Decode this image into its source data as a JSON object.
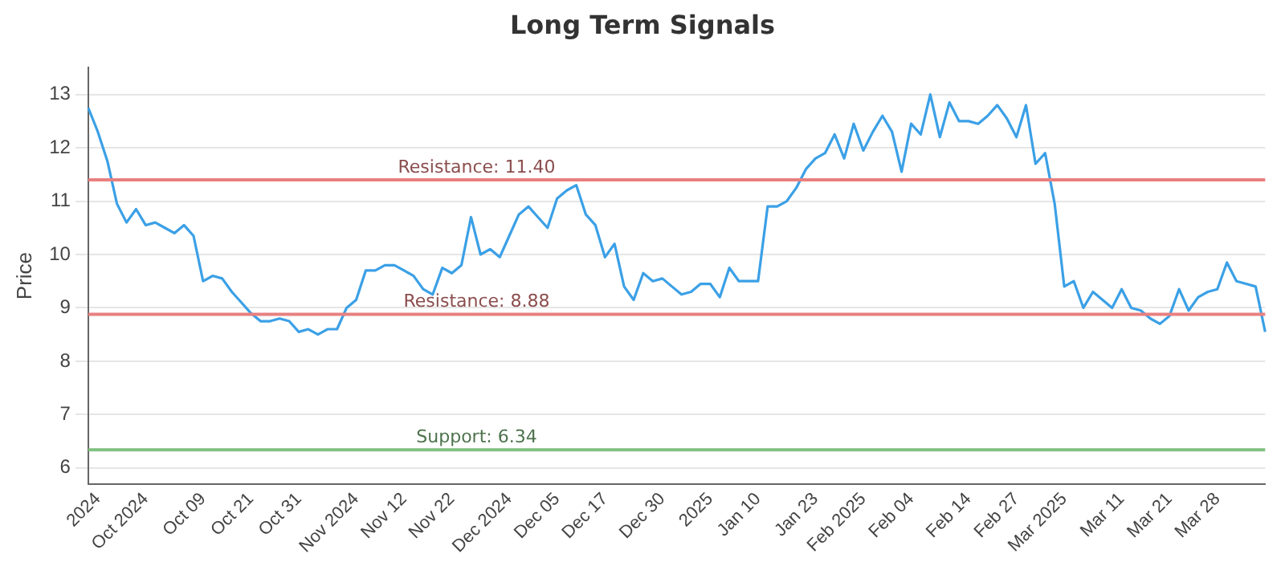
{
  "chart_data": {
    "type": "line",
    "title": "Long Term Signals",
    "ylabel": "Price",
    "categories": [
      null,
      "2024",
      null,
      null,
      null,
      null,
      "Oct 2024",
      null,
      null,
      null,
      null,
      null,
      "Oct 09",
      null,
      null,
      null,
      null,
      "Oct 21",
      null,
      null,
      null,
      null,
      "Oct 31",
      null,
      null,
      null,
      null,
      null,
      "Nov 2024",
      null,
      null,
      null,
      null,
      "Nov 12",
      null,
      null,
      null,
      null,
      "Nov 22",
      null,
      null,
      null,
      null,
      null,
      "Dec 2024",
      null,
      null,
      null,
      null,
      "Dec 05",
      null,
      null,
      null,
      null,
      "Dec 17",
      null,
      null,
      null,
      null,
      null,
      "Dec 30",
      null,
      null,
      null,
      null,
      "2025",
      null,
      null,
      null,
      null,
      "Jan 10",
      null,
      null,
      null,
      null,
      null,
      "Jan 23",
      null,
      null,
      null,
      null,
      "Feb 2025",
      null,
      null,
      null,
      null,
      "Feb 04",
      null,
      null,
      null,
      null,
      null,
      "Feb 14",
      null,
      null,
      null,
      null,
      "Feb 27",
      null,
      null,
      null,
      null,
      "Mar 2025",
      null,
      null,
      null,
      null,
      null,
      "Mar 11",
      null,
      null,
      null,
      null,
      "Mar 21",
      null,
      null,
      null,
      null,
      "Mar 28",
      null,
      null,
      null,
      null,
      null
    ],
    "series": [
      {
        "color": "#3ba0e6",
        "values": [
          12.75,
          12.3,
          11.75,
          10.95,
          10.6,
          10.85,
          10.55,
          10.6,
          10.5,
          10.4,
          10.55,
          10.35,
          9.5,
          9.6,
          9.55,
          9.3,
          9.1,
          8.9,
          8.75,
          8.75,
          8.8,
          8.75,
          8.55,
          8.6,
          8.5,
          8.6,
          8.6,
          9.0,
          9.15,
          9.7,
          9.7,
          9.8,
          9.8,
          9.7,
          9.6,
          9.35,
          9.25,
          9.75,
          9.65,
          9.8,
          10.7,
          10.0,
          10.1,
          9.95,
          10.35,
          10.75,
          10.9,
          10.7,
          10.5,
          11.05,
          11.2,
          11.3,
          10.75,
          10.55,
          9.95,
          10.2,
          9.4,
          9.15,
          9.65,
          9.5,
          9.55,
          9.4,
          9.25,
          9.3,
          9.45,
          9.45,
          9.2,
          9.75,
          9.5,
          9.5,
          9.5,
          10.9,
          10.9,
          11.0,
          11.25,
          11.6,
          11.8,
          11.9,
          12.25,
          11.8,
          12.45,
          11.95,
          12.3,
          12.6,
          12.3,
          11.55,
          12.45,
          12.25,
          13.0,
          12.2,
          12.85,
          12.5,
          12.5,
          12.45,
          12.6,
          12.8,
          12.55,
          12.2,
          12.8,
          11.7,
          11.9,
          10.95,
          9.4,
          9.5,
          9.0,
          9.3,
          9.15,
          9.0,
          9.35,
          9.0,
          8.95,
          8.8,
          8.7,
          8.85,
          9.35,
          8.95,
          9.2,
          9.3,
          9.35,
          9.85,
          9.5,
          9.45,
          9.4,
          8.55
        ]
      }
    ],
    "ylim": [
      5.7,
      13.5
    ],
    "yticks": [
      6,
      7,
      8,
      9,
      10,
      11,
      12,
      13
    ],
    "ref_lines": [
      {
        "axis": "y",
        "value": 11.4,
        "label": "Resistance: 11.40",
        "color": "#e88080"
      },
      {
        "axis": "y",
        "value": 8.88,
        "label": "Resistance: 8.88",
        "color": "#e88080"
      },
      {
        "axis": "y",
        "value": 6.34,
        "label": "Support: 6.34",
        "color": "#80c080"
      }
    ],
    "grid": "y",
    "legend": false,
    "marker": "none",
    "line_style": "solid"
  }
}
